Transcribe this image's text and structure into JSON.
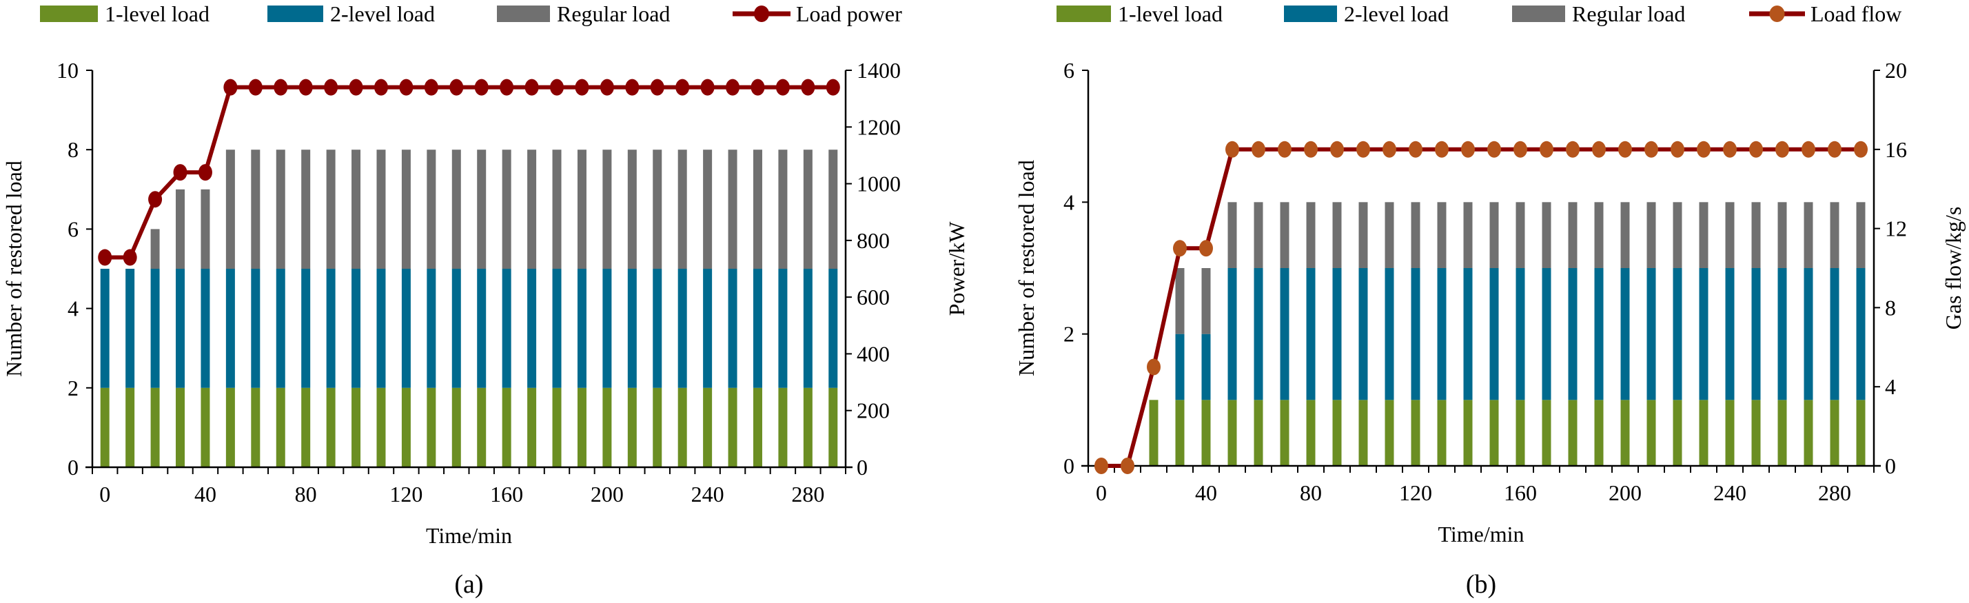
{
  "colors": {
    "level1": "#6B8E23",
    "level2": "#006A8E",
    "regular": "#707070",
    "line": "#8B0000",
    "marker_a": "#8B0000",
    "marker_b": "#B5541B"
  },
  "chart_data": [
    {
      "type": "bar+line",
      "panel_label": "(a)",
      "xlabel": "Time/min",
      "ylabel": "Number of restored load",
      "y2label": "Power/kW",
      "xlim": [
        -5,
        295
      ],
      "ylim": [
        0,
        10
      ],
      "y2lim": [
        0,
        1400
      ],
      "xticks": [
        "0",
        "40",
        "80",
        "120",
        "160",
        "200",
        "240",
        "280"
      ],
      "yticks": [
        "0",
        "2",
        "4",
        "6",
        "8",
        "10"
      ],
      "y2ticks": [
        "0",
        "200",
        "400",
        "600",
        "800",
        "1000",
        "1200",
        "1400"
      ],
      "legend": [
        "1-level load",
        "2-level load",
        "Regular load",
        "Load power"
      ],
      "legend_position": "top",
      "x": [
        0,
        10,
        20,
        30,
        40,
        50,
        60,
        70,
        80,
        90,
        100,
        110,
        120,
        130,
        140,
        150,
        160,
        170,
        180,
        190,
        200,
        210,
        220,
        230,
        240,
        250,
        260,
        270,
        280,
        290
      ],
      "series": [
        {
          "name": "1-level load",
          "values": [
            2,
            2,
            2,
            2,
            2,
            2,
            2,
            2,
            2,
            2,
            2,
            2,
            2,
            2,
            2,
            2,
            2,
            2,
            2,
            2,
            2,
            2,
            2,
            2,
            2,
            2,
            2,
            2,
            2,
            2
          ]
        },
        {
          "name": "2-level load",
          "values": [
            3,
            3,
            3,
            3,
            3,
            3,
            3,
            3,
            3,
            3,
            3,
            3,
            3,
            3,
            3,
            3,
            3,
            3,
            3,
            3,
            3,
            3,
            3,
            3,
            3,
            3,
            3,
            3,
            3,
            3
          ]
        },
        {
          "name": "Regular load",
          "values": [
            0,
            0,
            1,
            2,
            2,
            3,
            3,
            3,
            3,
            3,
            3,
            3,
            3,
            3,
            3,
            3,
            3,
            3,
            3,
            3,
            3,
            3,
            3,
            3,
            3,
            3,
            3,
            3,
            3,
            3
          ]
        },
        {
          "name": "Load power",
          "axis": "right",
          "values": [
            740,
            740,
            945,
            1040,
            1040,
            1340,
            1340,
            1340,
            1340,
            1340,
            1340,
            1340,
            1340,
            1340,
            1340,
            1340,
            1340,
            1340,
            1340,
            1340,
            1340,
            1340,
            1340,
            1340,
            1340,
            1340,
            1340,
            1340,
            1340,
            1340
          ]
        }
      ]
    },
    {
      "type": "bar+line",
      "panel_label": "(b)",
      "xlabel": "Time/min",
      "ylabel": "Number of restored load",
      "y2label": "Gas flow/kg/s",
      "xlim": [
        -5,
        295
      ],
      "ylim": [
        0,
        6
      ],
      "y2lim": [
        0,
        20
      ],
      "xticks": [
        "0",
        "40",
        "80",
        "120",
        "160",
        "200",
        "240",
        "280"
      ],
      "yticks": [
        "0",
        "2",
        "4",
        "6"
      ],
      "y2ticks": [
        "0",
        "4",
        "8",
        "12",
        "16",
        "20"
      ],
      "legend": [
        "1-level load",
        "2-level load",
        "Regular load",
        "Load flow"
      ],
      "legend_position": "top",
      "x": [
        0,
        10,
        20,
        30,
        40,
        50,
        60,
        70,
        80,
        90,
        100,
        110,
        120,
        130,
        140,
        150,
        160,
        170,
        180,
        190,
        200,
        210,
        220,
        230,
        240,
        250,
        260,
        270,
        280,
        290
      ],
      "series": [
        {
          "name": "1-level load",
          "values": [
            0,
            0,
            1,
            1,
            1,
            1,
            1,
            1,
            1,
            1,
            1,
            1,
            1,
            1,
            1,
            1,
            1,
            1,
            1,
            1,
            1,
            1,
            1,
            1,
            1,
            1,
            1,
            1,
            1,
            1
          ]
        },
        {
          "name": "2-level load",
          "values": [
            0,
            0,
            0,
            1,
            1,
            2,
            2,
            2,
            2,
            2,
            2,
            2,
            2,
            2,
            2,
            2,
            2,
            2,
            2,
            2,
            2,
            2,
            2,
            2,
            2,
            2,
            2,
            2,
            2,
            2
          ]
        },
        {
          "name": "Regular load",
          "values": [
            0,
            0,
            0,
            1,
            1,
            1,
            1,
            1,
            1,
            1,
            1,
            1,
            1,
            1,
            1,
            1,
            1,
            1,
            1,
            1,
            1,
            1,
            1,
            1,
            1,
            1,
            1,
            1,
            1,
            1
          ]
        },
        {
          "name": "Load flow",
          "axis": "right",
          "values": [
            0,
            0,
            5,
            11,
            11,
            16,
            16,
            16,
            16,
            16,
            16,
            16,
            16,
            16,
            16,
            16,
            16,
            16,
            16,
            16,
            16,
            16,
            16,
            16,
            16,
            16,
            16,
            16,
            16,
            16
          ]
        }
      ]
    }
  ]
}
